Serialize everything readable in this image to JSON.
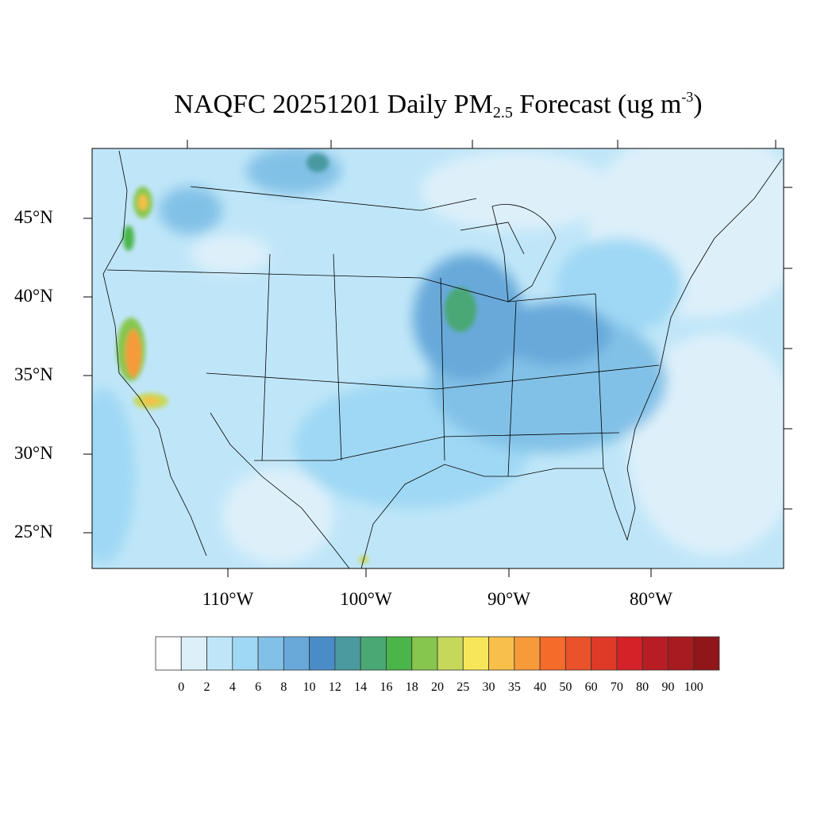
{
  "title": {
    "prefix": "NAQFC 20251201 Daily PM",
    "subscript": "2.5",
    "middle": " Forecast (ug m",
    "superscript": "-3",
    "suffix": ")"
  },
  "latitude_labels": [
    "45°N",
    "40°N",
    "35°N",
    "30°N",
    "25°N"
  ],
  "longitude_labels": [
    "110°W",
    "100°W",
    "90°W",
    "80°W"
  ],
  "map": {
    "region": "Contiguous United States",
    "variable": "Daily PM2.5",
    "background_level_color": "#bfe6f8",
    "hotspots": [
      "Central California",
      "Southern California",
      "Western Washington/Oregon",
      "Iowa",
      "Ohio Valley"
    ]
  },
  "colorbar": {
    "labels": [
      "0",
      "2",
      "4",
      "6",
      "8",
      "10",
      "12",
      "14",
      "16",
      "18",
      "20",
      "25",
      "30",
      "35",
      "40",
      "50",
      "60",
      "70",
      "80",
      "90",
      "100"
    ],
    "colors": [
      "#ffffff",
      "#ddf0fa",
      "#bfe6f8",
      "#9fd8f4",
      "#82c1e7",
      "#68a9da",
      "#4a8cc8",
      "#4a9aa0",
      "#4aa874",
      "#4ab548",
      "#86c64e",
      "#c6d85a",
      "#f8e65a",
      "#f8c04a",
      "#f79a3a",
      "#f56b2a",
      "#e9522a",
      "#df3a28",
      "#d42228",
      "#b91d24",
      "#a81b20",
      "#901619"
    ]
  }
}
